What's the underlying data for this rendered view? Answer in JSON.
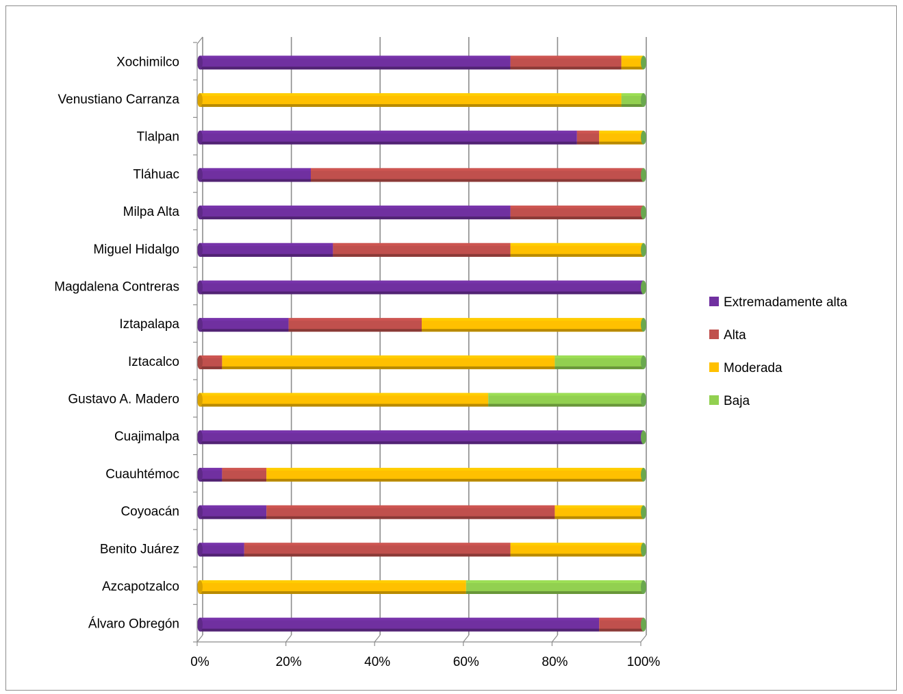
{
  "chart_data": {
    "type": "bar",
    "orientation": "horizontal",
    "stacked": "percent",
    "categories": [
      "Álvaro Obregón",
      "Azcapotzalco",
      "Benito Juárez",
      "Coyoacán",
      "Cuauhtémoc",
      "Cuajimalpa",
      "Gustavo A. Madero",
      "Iztacalco",
      "Iztapalapa",
      "Magdalena Contreras",
      "Miguel Hidalgo",
      "Milpa Alta",
      "Tláhuac",
      "Tlalpan",
      "Venustiano Carranza",
      "Xochimilco"
    ],
    "series": [
      {
        "name": "Extremadamente alta",
        "color": "#7030a0",
        "values": [
          90,
          0,
          10,
          15,
          5,
          100,
          0,
          0,
          20,
          100,
          30,
          70,
          25,
          85,
          0,
          70
        ]
      },
      {
        "name": "Alta",
        "color": "#c0504d",
        "values": [
          10,
          0,
          60,
          65,
          10,
          0,
          0,
          5,
          30,
          0,
          40,
          30,
          75,
          5,
          0,
          25
        ]
      },
      {
        "name": "Moderada",
        "color": "#ffc000",
        "values": [
          0,
          60,
          30,
          20,
          85,
          0,
          65,
          75,
          50,
          0,
          30,
          0,
          0,
          10,
          95,
          5
        ]
      },
      {
        "name": "Baja",
        "color": "#92d050",
        "values": [
          0,
          40,
          0,
          0,
          0,
          0,
          35,
          20,
          0,
          0,
          0,
          0,
          0,
          0,
          5,
          0
        ]
      }
    ],
    "xlim": [
      0,
      100
    ],
    "x_ticks": [
      "0%",
      "20%",
      "40%",
      "60%",
      "80%",
      "100%"
    ],
    "grid": true,
    "legend": "right",
    "title": "",
    "xlabel": "",
    "ylabel": ""
  }
}
